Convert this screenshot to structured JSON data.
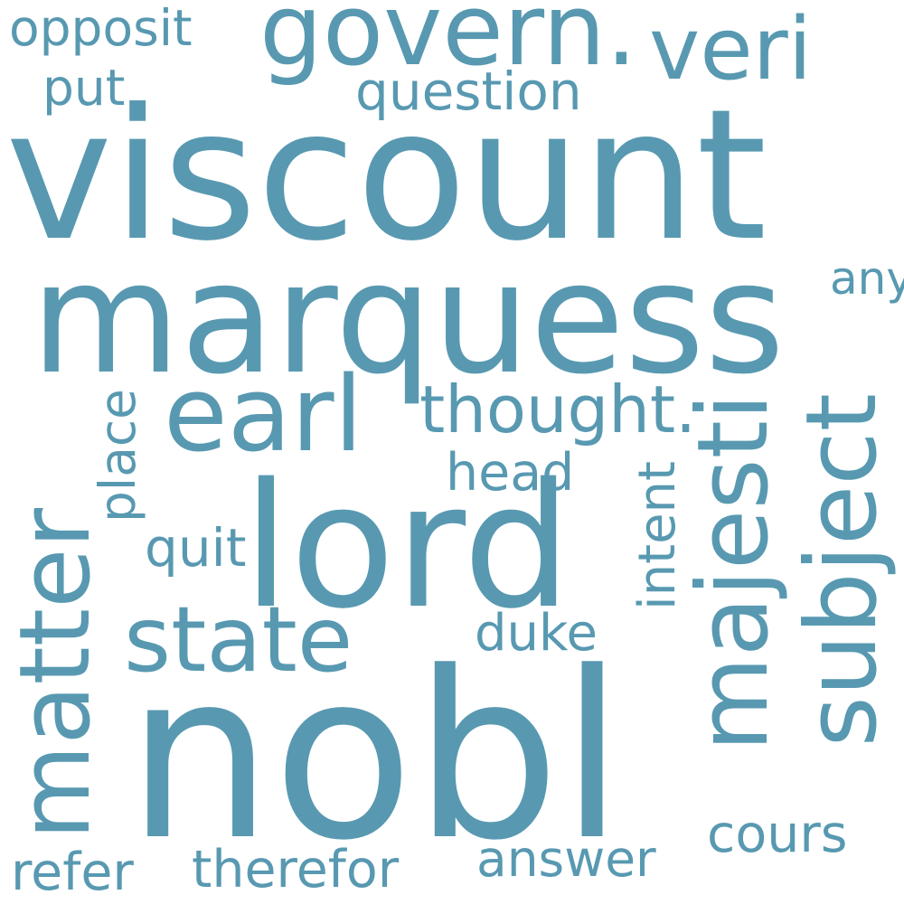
{
  "word_color": "#5899b1",
  "background": "#ffffff",
  "words": {
    "viscount": "viscount",
    "marquess": "marquess",
    "nobl": "nobl",
    "lord": "lord",
    "govern": "govern.",
    "veri": "veri",
    "opposit": "opposit",
    "put": "put",
    "question": "question",
    "earl": "earl",
    "thought": "thought.",
    "majesti": "majesti",
    "subject": "subject",
    "anyth": "anyth",
    "matter": "matter",
    "place": "place",
    "state": "state",
    "head": "head",
    "quit": "quit",
    "intent": "intent",
    "duke": "duke",
    "cours": "cours",
    "refer": "refer",
    "therefor": "therefor",
    "answer": "answer"
  }
}
